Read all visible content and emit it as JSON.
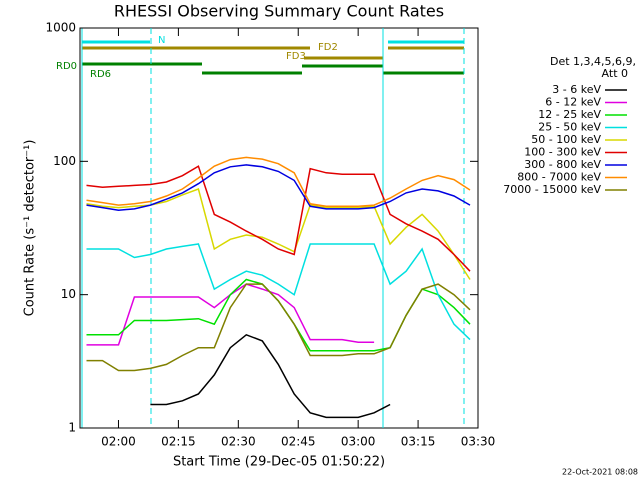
{
  "chart_data": {
    "type": "line",
    "title": "RHESSI Observing Summary Count Rates",
    "x_label": "Start Time (29-Dec-05 01:50:22)",
    "y_label": "Count Rate (s⁻¹ detector⁻¹)",
    "legend_title": [
      "Det 1,3,4,5,6,9,",
      "Att 0"
    ],
    "footer": "22-Oct-2021 08:08",
    "annotations": [
      "N",
      "FD2",
      "FD3",
      "RD0",
      "RD6"
    ],
    "log_y": true,
    "xlim": [
      110.37,
      210
    ],
    "xticks": [
      {
        "value": 120,
        "label": "02:00"
      },
      {
        "value": 135,
        "label": "02:15"
      },
      {
        "value": 150,
        "label": "02:30"
      },
      {
        "value": 165,
        "label": "02:45"
      },
      {
        "value": 180,
        "label": "03:00"
      },
      {
        "value": 195,
        "label": "03:15"
      },
      {
        "value": 210,
        "label": "03:30"
      }
    ],
    "ylim": [
      1,
      1000
    ],
    "yticks": [
      1,
      10,
      100,
      1000
    ],
    "x": [
      112,
      116,
      120,
      124,
      128,
      132,
      136,
      140,
      144,
      148,
      152,
      156,
      160,
      164,
      168,
      172,
      176,
      180,
      184,
      188,
      192,
      196,
      200,
      204,
      208
    ],
    "series": [
      {
        "name": "3 - 6 keV",
        "color": "#000000",
        "values": [
          null,
          null,
          null,
          null,
          1.5,
          1.5,
          1.6,
          1.8,
          2.5,
          4,
          5,
          4.5,
          3,
          1.8,
          1.3,
          1.2,
          1.2,
          1.2,
          1.3,
          1.5,
          null,
          null,
          null,
          null,
          null
        ]
      },
      {
        "name": "6 - 12 keV",
        "color": "#e000e0",
        "values": [
          4.2,
          4.2,
          4.2,
          9.6,
          9.6,
          9.6,
          9.6,
          9.6,
          8,
          10,
          12,
          11,
          10,
          8,
          4.6,
          4.6,
          4.6,
          4.4,
          4.4,
          null,
          null,
          null,
          null,
          null,
          null
        ]
      },
      {
        "name": "12 - 25 keV",
        "color": "#00e000",
        "values": [
          5,
          5,
          5,
          6.4,
          6.4,
          6.4,
          6.5,
          6.6,
          6,
          10,
          13,
          12,
          9,
          6,
          3.8,
          3.8,
          3.8,
          3.8,
          3.8,
          4,
          7,
          11,
          10,
          8,
          6
        ]
      },
      {
        "name": "25 - 50 keV",
        "color": "#00e0e0",
        "values": [
          22,
          22,
          22,
          19,
          20,
          22,
          23,
          24,
          11,
          13,
          15,
          14,
          12,
          10,
          24,
          24,
          24,
          24,
          24,
          12,
          15,
          22,
          10,
          6,
          4.6
        ]
      },
      {
        "name": "50 - 100 keV",
        "color": "#d8d800",
        "values": [
          48,
          46,
          45,
          46,
          47,
          50,
          56,
          62,
          22,
          26,
          28,
          27,
          24,
          21,
          47,
          45,
          45,
          45,
          46,
          24,
          32,
          40,
          30,
          20,
          13
        ]
      },
      {
        "name": "100 - 300 keV",
        "color": "#e00000",
        "values": [
          66,
          64,
          65,
          66,
          67,
          70,
          78,
          92,
          40,
          35,
          30,
          26,
          22,
          20,
          88,
          82,
          80,
          80,
          80,
          40,
          34,
          30,
          26,
          20,
          15
        ]
      },
      {
        "name": "300 - 800 keV",
        "color": "#0000e0",
        "values": [
          47,
          45,
          43,
          44,
          47,
          52,
          58,
          68,
          82,
          91,
          94,
          91,
          84,
          72,
          46,
          44,
          44,
          44,
          45,
          50,
          58,
          62,
          60,
          55,
          47
        ]
      },
      {
        "name": "800 - 7000 keV",
        "color": "#ff8c00",
        "values": [
          51,
          49,
          47,
          48,
          50,
          55,
          62,
          75,
          92,
          103,
          107,
          104,
          96,
          82,
          48,
          46,
          46,
          46,
          47,
          53,
          62,
          72,
          78,
          73,
          61
        ]
      },
      {
        "name": "7000 - 15000 keV",
        "color": "#808000",
        "values": [
          3.2,
          3.2,
          2.7,
          2.7,
          2.8,
          3,
          3.5,
          4,
          4,
          8,
          12,
          12,
          9,
          6,
          3.5,
          3.5,
          3.5,
          3.6,
          3.6,
          4,
          7,
          11,
          12,
          10,
          7.7
        ]
      }
    ]
  }
}
